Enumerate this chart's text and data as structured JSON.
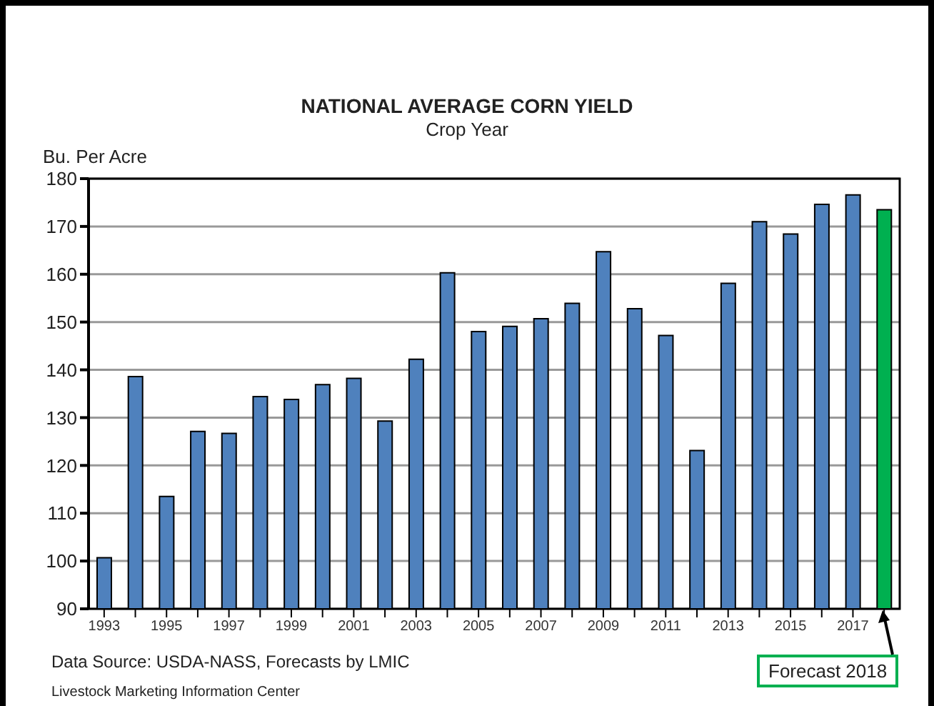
{
  "chart_data": {
    "type": "bar",
    "title": "NATIONAL AVERAGE CORN YIELD",
    "subtitle": "Crop Year",
    "ylabel": "Bu. Per Acre",
    "categories": [
      "1993",
      null,
      "1995",
      null,
      "1997",
      null,
      "1999",
      null,
      "2001",
      null,
      "2003",
      null,
      "2005",
      null,
      "2007",
      null,
      "2009",
      null,
      "2011",
      null,
      "2013",
      null,
      "2015",
      null,
      "2017",
      null
    ],
    "values": [
      100.7,
      138.6,
      113.5,
      127.1,
      126.7,
      134.4,
      133.8,
      136.9,
      138.2,
      129.3,
      142.2,
      160.3,
      148.0,
      149.1,
      150.7,
      153.9,
      164.7,
      152.8,
      147.2,
      123.1,
      158.1,
      171.0,
      168.4,
      174.6,
      176.6,
      173.5
    ],
    "colors": [
      "#4f81bd",
      "#4f81bd",
      "#4f81bd",
      "#4f81bd",
      "#4f81bd",
      "#4f81bd",
      "#4f81bd",
      "#4f81bd",
      "#4f81bd",
      "#4f81bd",
      "#4f81bd",
      "#4f81bd",
      "#4f81bd",
      "#4f81bd",
      "#4f81bd",
      "#4f81bd",
      "#4f81bd",
      "#4f81bd",
      "#4f81bd",
      "#4f81bd",
      "#4f81bd",
      "#4f81bd",
      "#4f81bd",
      "#4f81bd",
      "#4f81bd",
      "#00b050"
    ],
    "ylim": [
      90,
      180
    ],
    "yticks": [
      90,
      100,
      110,
      120,
      130,
      140,
      150,
      160,
      170,
      180
    ],
    "grid": "y",
    "annotations": [
      "Data Source:  USDA-NASS, Forecasts by LMIC",
      "Livestock Marketing Information Center",
      "Forecast 2018"
    ]
  }
}
